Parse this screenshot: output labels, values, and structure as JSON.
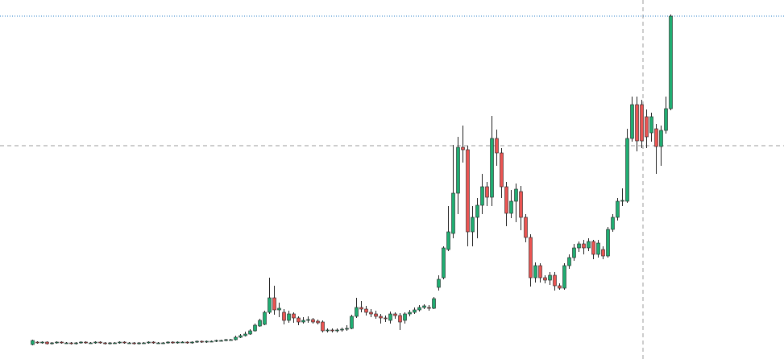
{
  "chart_data": {
    "type": "candlestick",
    "ylim": [
      0,
      446
    ],
    "up_color": "#1fae72",
    "down_color": "#ec5452",
    "open": [
      18,
      21,
      20,
      21,
      19,
      20,
      21,
      20,
      20,
      19,
      20,
      21,
      20,
      20,
      21,
      20,
      19,
      20,
      20,
      21,
      20,
      20,
      19,
      20,
      20,
      21,
      20,
      20,
      20,
      21,
      20,
      21,
      21,
      20,
      21,
      22,
      21,
      22,
      22,
      23,
      23,
      24,
      24,
      27,
      29,
      31,
      35,
      41,
      43,
      58,
      76,
      61,
      58,
      48,
      56,
      51,
      46,
      48,
      49,
      47,
      46,
      35,
      36,
      35,
      36,
      37,
      38,
      53,
      64,
      62,
      58,
      56,
      53,
      51,
      48,
      56,
      54,
      48,
      56,
      58,
      61,
      64,
      64,
      63,
      89,
      101,
      136,
      156,
      206,
      263,
      260,
      158,
      176,
      191,
      214,
      201,
      274,
      256,
      214,
      181,
      196,
      208,
      176,
      151,
      101,
      116,
      101,
      98,
      104,
      91,
      88,
      116,
      126,
      138,
      143,
      138,
      146,
      130,
      136,
      128,
      161,
      176,
      196,
      196,
      274,
      316,
      316,
      301,
      281,
      286,
      264,
      284,
      311
    ],
    "close": [
      23,
      20,
      21,
      19,
      20,
      21,
      20,
      20,
      19,
      20,
      21,
      20,
      20,
      21,
      20,
      19,
      20,
      20,
      21,
      20,
      20,
      19,
      20,
      20,
      21,
      20,
      20,
      20,
      21,
      20,
      21,
      21,
      20,
      21,
      22,
      21,
      22,
      22,
      23,
      23,
      24,
      24,
      27,
      29,
      31,
      35,
      42,
      48,
      58,
      76,
      61,
      63,
      48,
      56,
      51,
      46,
      48,
      49,
      46,
      45,
      35,
      36,
      35,
      36,
      37,
      38,
      53,
      64,
      62,
      58,
      56,
      53,
      51,
      50,
      56,
      54,
      46,
      56,
      58,
      61,
      64,
      66,
      63,
      75,
      99,
      138,
      158,
      206,
      263,
      260,
      158,
      176,
      191,
      214,
      201,
      274,
      256,
      214,
      181,
      196,
      211,
      176,
      151,
      101,
      116,
      101,
      98,
      104,
      91,
      88,
      116,
      126,
      138,
      143,
      138,
      146,
      130,
      144,
      128,
      161,
      176,
      196,
      197,
      274,
      316,
      271,
      271,
      276,
      301,
      264,
      284,
      311,
      426
    ],
    "high": [
      24,
      22,
      22,
      22,
      21,
      22,
      22,
      21,
      21,
      21,
      22,
      22,
      21,
      22,
      22,
      21,
      21,
      21,
      22,
      22,
      21,
      21,
      21,
      21,
      22,
      22,
      21,
      21,
      22,
      22,
      22,
      22,
      22,
      22,
      23,
      23,
      23,
      23,
      24,
      24,
      25,
      25,
      29,
      31,
      34,
      37,
      44,
      50,
      60,
      101,
      91,
      70,
      62,
      60,
      58,
      53,
      52,
      53,
      51,
      49,
      48,
      38,
      38,
      38,
      39,
      42,
      55,
      76,
      72,
      66,
      62,
      60,
      56,
      54,
      59,
      58,
      57,
      58,
      61,
      64,
      67,
      68,
      67,
      77,
      104,
      140,
      190,
      266,
      276,
      290,
      265,
      190,
      200,
      230,
      220,
      302,
      285,
      262,
      220,
      210,
      218,
      215,
      180,
      155,
      120,
      119,
      104,
      108,
      108,
      94,
      119,
      130,
      143,
      146,
      148,
      150,
      148,
      148,
      140,
      164,
      180,
      200,
      212,
      286,
      326,
      326,
      322,
      310,
      306,
      292,
      290,
      326,
      428
    ],
    "low": [
      17,
      19,
      19,
      18,
      18,
      19,
      19,
      19,
      18,
      18,
      19,
      19,
      19,
      19,
      19,
      18,
      18,
      19,
      19,
      19,
      19,
      18,
      18,
      19,
      19,
      19,
      19,
      19,
      19,
      19,
      19,
      20,
      19,
      19,
      20,
      20,
      20,
      21,
      21,
      22,
      22,
      23,
      23,
      26,
      28,
      30,
      34,
      40,
      42,
      56,
      55,
      52,
      43,
      45,
      45,
      42,
      44,
      45,
      44,
      43,
      33,
      33,
      33,
      33,
      34,
      35,
      37,
      51,
      58,
      54,
      52,
      50,
      44,
      46,
      44,
      50,
      36,
      44,
      53,
      56,
      59,
      62,
      60,
      62,
      85,
      99,
      134,
      150,
      180,
      244,
      140,
      140,
      150,
      180,
      190,
      190,
      240,
      200,
      165,
      175,
      170,
      160,
      145,
      90,
      95,
      95,
      94,
      92,
      85,
      86,
      86,
      112,
      122,
      133,
      130,
      134,
      124,
      126,
      124,
      126,
      158,
      172,
      190,
      194,
      270,
      258,
      262,
      262,
      270,
      230,
      240,
      280,
      309
    ]
  }
}
